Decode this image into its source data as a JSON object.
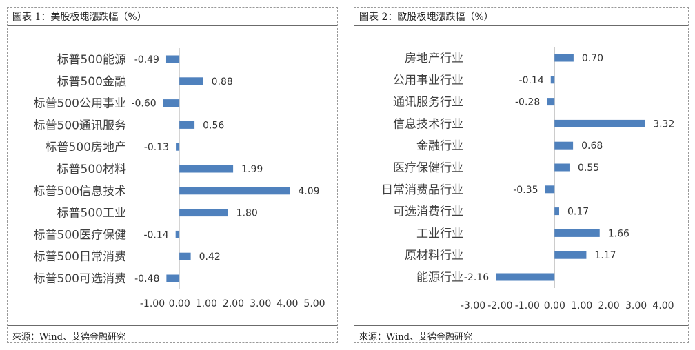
{
  "bar_color": "#4f81bd",
  "chart_data": [
    {
      "type": "bar",
      "orientation": "horizontal",
      "title": "圖表 1：美股板塊漲跌幅（%）",
      "source": "來源：Wind、艾德金融研究",
      "categories": [
        "标普500能源",
        "标普500金融",
        "标普500公用事业",
        "标普500通讯服务",
        "标普500房地产",
        "标普500材料",
        "标普500信息技术",
        "标普500工业",
        "标普500医疗保健",
        "标普500日常消费",
        "标普500可选消费"
      ],
      "values": [
        -0.49,
        0.88,
        -0.6,
        0.56,
        -0.13,
        1.99,
        4.09,
        1.8,
        -0.14,
        0.42,
        -0.48
      ],
      "value_labels": [
        "-0.49",
        "0.88",
        "-0.60",
        "0.56",
        "-0.13",
        "1.99",
        "4.09",
        "1.80",
        "-0.14",
        "0.42",
        "-0.48"
      ],
      "xlim": [
        -1,
        5
      ],
      "ticks": [
        -1,
        0,
        1,
        2,
        3,
        4,
        5
      ],
      "tick_labels": [
        "-1.00",
        "0.00",
        "1.00",
        "2.00",
        "3.00",
        "4.00",
        "5.00"
      ],
      "grid": false,
      "legend": "none"
    },
    {
      "type": "bar",
      "orientation": "horizontal",
      "title": "圖表 2：歐股板塊漲跌幅（%）",
      "source": "來源：Wind、艾德金融研究",
      "categories": [
        "房地产行业",
        "公用事业行业",
        "通讯服务行业",
        "信息技术行业",
        "金融行业",
        "医疗保健行业",
        "日常消费品行业",
        "可选消费行业",
        "工业行业",
        "原材料行业",
        "能源行业"
      ],
      "values": [
        0.7,
        -0.14,
        -0.28,
        3.32,
        0.68,
        0.55,
        -0.35,
        0.17,
        1.66,
        1.17,
        -2.16
      ],
      "value_labels": [
        "0.70",
        "-0.14",
        "-0.28",
        "3.32",
        "0.68",
        "0.55",
        "-0.35",
        "0.17",
        "1.66",
        "1.17",
        "-2.16"
      ],
      "xlim": [
        -3,
        4
      ],
      "ticks": [
        -3,
        -2,
        -1,
        0,
        1,
        2,
        3,
        4
      ],
      "tick_labels": [
        "-3.00",
        "-2.00",
        "-1.00",
        "0.00",
        "1.00",
        "2.00",
        "3.00",
        "4.00"
      ],
      "grid": false,
      "legend": "none"
    }
  ]
}
